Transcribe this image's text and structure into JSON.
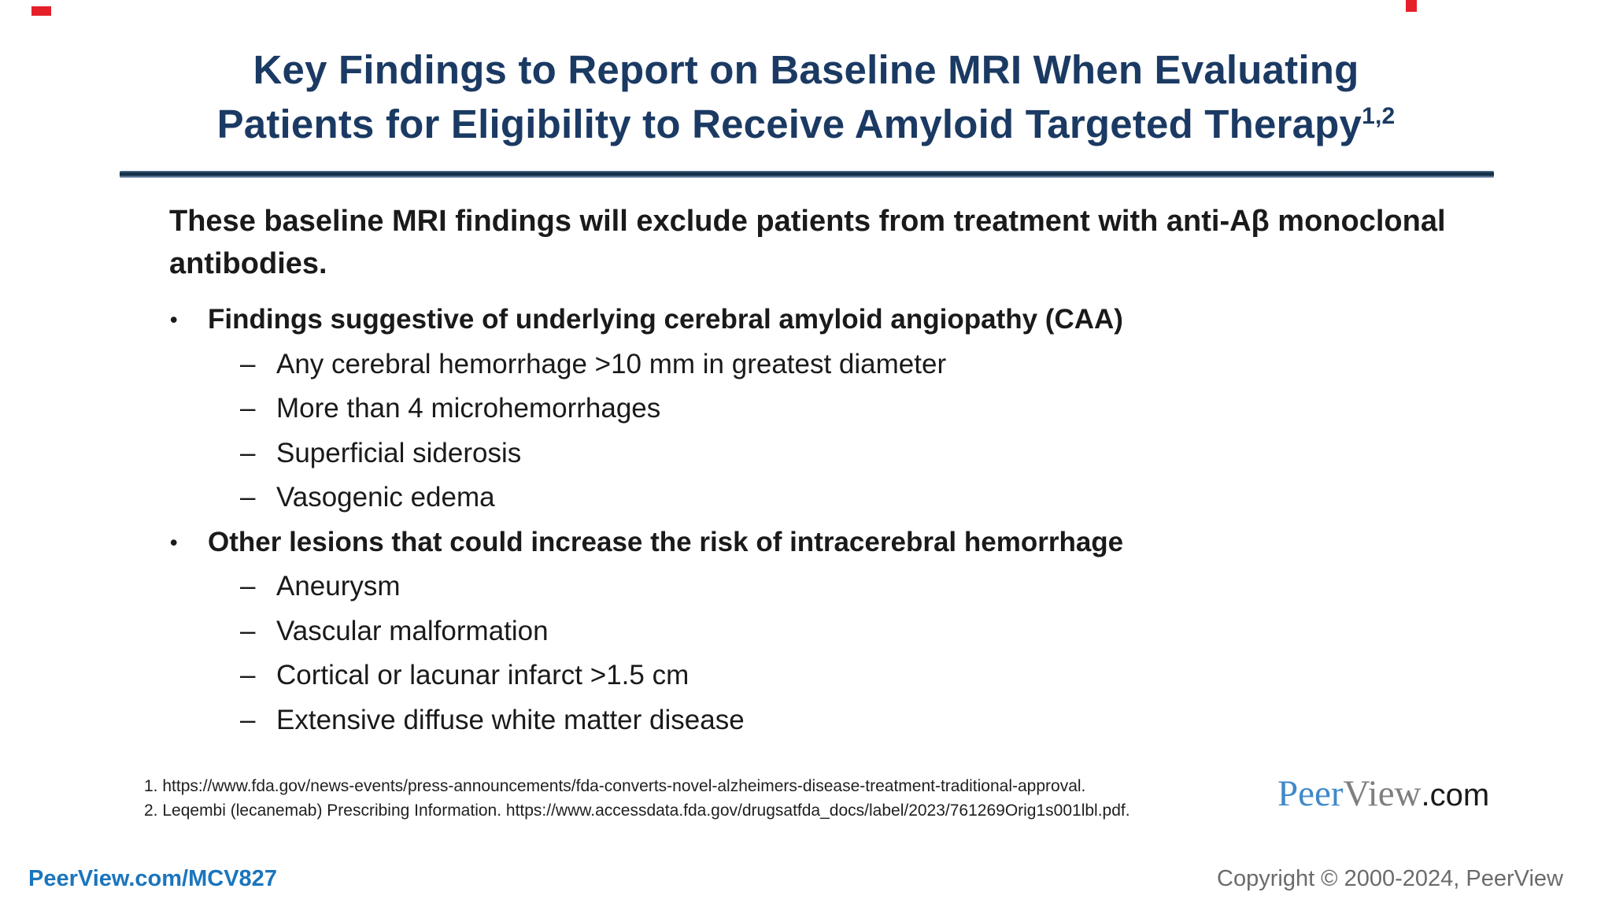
{
  "slide": {
    "title": {
      "line1": "Key Findings to Report on Baseline MRI When Evaluating",
      "line2": "Patients for Eligibility to Receive Amyloid Targeted Therapy",
      "superscript": "1,2"
    },
    "intro": "These baseline MRI findings will exclude patients from treatment with anti-Aβ monoclonal antibodies.",
    "markers": {
      "level1": "•",
      "level2": "–"
    },
    "bullets": [
      {
        "label": "Findings suggestive of underlying cerebral amyloid angiopathy (CAA)",
        "sub": [
          "Any cerebral hemorrhage >10 mm in greatest diameter",
          "More than 4 microhemorrhages",
          "Superficial siderosis",
          "Vasogenic edema"
        ]
      },
      {
        "label": "Other lesions that could increase the risk of intracerebral hemorrhage",
        "sub": [
          "Aneurysm",
          "Vascular malformation",
          "Cortical or lacunar infarct >1.5 cm",
          "Extensive diffuse white matter disease"
        ]
      }
    ],
    "footnotes": [
      "1. https://www.fda.gov/news-events/press-announcements/fda-converts-novel-alzheimers-disease-treatment-traditional-approval.",
      "2. Leqembi (lecanemab) Prescribing Information. https://www.accessdata.fda.gov/drugsatfda_docs/label/2023/761269Orig1s001lbl.pdf."
    ],
    "logo": {
      "peer": "Peer",
      "view": "View",
      "com": ".com"
    },
    "footer": {
      "left": "PeerView.com/MCV827",
      "right": "Copyright © 2000-2024, PeerView"
    },
    "colors": {
      "title_navy": "#1b3a63",
      "rule_navy": "#0e2840",
      "body_black": "#1a1a1a",
      "footer_blue": "#1b75bc",
      "copyright_gray": "#6b6b6b",
      "logo_blue": "#4189c9",
      "logo_gray": "#7f7f7f",
      "artifact_red": "#e5202a"
    }
  }
}
